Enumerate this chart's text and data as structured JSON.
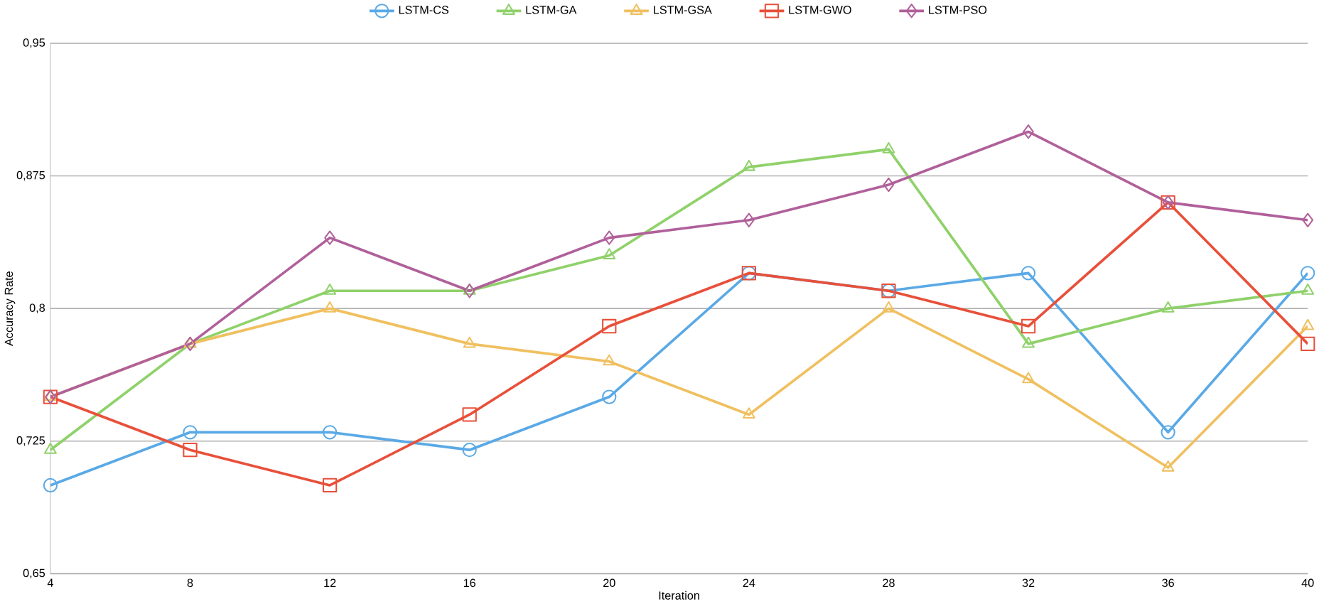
{
  "chart_data": {
    "type": "line",
    "xlabel": "Iteration",
    "ylabel": "Accuracy Rate",
    "x": [
      4,
      8,
      12,
      16,
      20,
      24,
      28,
      32,
      36,
      40
    ],
    "xlim": [
      4,
      40
    ],
    "xticks": [
      4,
      8,
      12,
      16,
      20,
      24,
      28,
      32,
      36,
      40
    ],
    "ylim": [
      0.65,
      0.95
    ],
    "yticks": [
      {
        "value": 0.65,
        "label": "0,65"
      },
      {
        "value": 0.725,
        "label": "0,725"
      },
      {
        "value": 0.8,
        "label": "0,8"
      },
      {
        "value": 0.875,
        "label": "0,875"
      },
      {
        "value": 0.95,
        "label": "0,95"
      }
    ],
    "grid": "y",
    "legend": "top",
    "series": [
      {
        "name": "LSTM-CS",
        "color": "#5aa9e6",
        "marker": "circle",
        "values": [
          0.7,
          0.73,
          0.73,
          0.72,
          0.75,
          0.82,
          0.81,
          0.82,
          0.73,
          0.82
        ]
      },
      {
        "name": "LSTM-GA",
        "color": "#8fd16a",
        "marker": "triangle",
        "values": [
          0.72,
          0.78,
          0.81,
          0.81,
          0.83,
          0.88,
          0.89,
          0.78,
          0.8,
          0.81
        ]
      },
      {
        "name": "LSTM-GSA",
        "color": "#f0c060",
        "marker": "triangle",
        "values": [
          0.75,
          0.78,
          0.8,
          0.78,
          0.77,
          0.74,
          0.8,
          0.76,
          0.71,
          0.79
        ]
      },
      {
        "name": "LSTM-GWO",
        "color": "#e8503a",
        "marker": "square",
        "values": [
          0.75,
          0.72,
          0.7,
          0.74,
          0.79,
          0.82,
          0.81,
          0.79,
          0.86,
          0.78
        ]
      },
      {
        "name": "LSTM-PSO",
        "color": "#b0609a",
        "marker": "diamond",
        "values": [
          0.75,
          0.78,
          0.84,
          0.81,
          0.84,
          0.85,
          0.87,
          0.9,
          0.86,
          0.85
        ]
      }
    ]
  }
}
